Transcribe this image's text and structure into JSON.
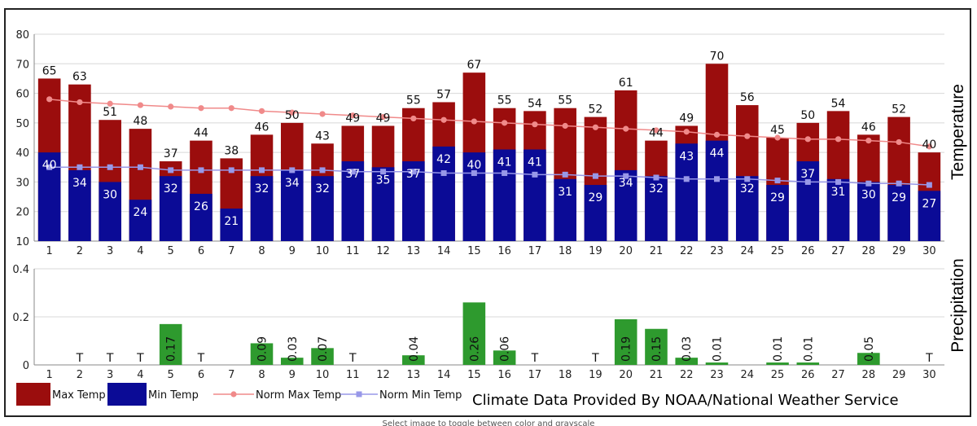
{
  "chart_data": {
    "type": "bar",
    "credit": "Climate Data Provided By NOAA/National Weather Service",
    "caption": "Select image to toggle between color and grayscale",
    "temperature_panel": {
      "ylabel": "Temperature",
      "ylim": [
        10,
        80
      ],
      "yticks": [
        "80",
        "70",
        "60",
        "50",
        "40",
        "30",
        "20",
        "10"
      ],
      "categories": [
        "1",
        "2",
        "3",
        "4",
        "5",
        "6",
        "7",
        "8",
        "9",
        "10",
        "11",
        "12",
        "13",
        "14",
        "15",
        "16",
        "17",
        "18",
        "19",
        "20",
        "21",
        "22",
        "23",
        "24",
        "25",
        "26",
        "27",
        "28",
        "29",
        "30"
      ],
      "series": [
        {
          "name": "Max Temp",
          "color": "#9b0d0d",
          "values": [
            65,
            63,
            51,
            48,
            37,
            44,
            38,
            46,
            50,
            43,
            49,
            49,
            55,
            57,
            67,
            55,
            54,
            55,
            52,
            61,
            44,
            49,
            70,
            56,
            45,
            50,
            54,
            46,
            52,
            40
          ]
        },
        {
          "name": "Min Temp",
          "color": "#0b0b96",
          "values": [
            40,
            34,
            30,
            24,
            32,
            26,
            21,
            32,
            34,
            32,
            37,
            35,
            37,
            42,
            40,
            41,
            41,
            31,
            29,
            34,
            32,
            43,
            44,
            32,
            29,
            37,
            31,
            30,
            29,
            27
          ]
        },
        {
          "name": "Norm Max Temp",
          "color": "#f08a8a",
          "values": [
            58,
            57,
            56.5,
            56,
            55.5,
            55,
            55,
            54,
            53.5,
            53,
            52.5,
            52,
            51.5,
            51,
            50.5,
            50,
            49.5,
            49,
            48.5,
            48,
            47.5,
            47,
            46,
            45.5,
            45,
            44.5,
            44.5,
            44,
            43.5,
            42
          ]
        },
        {
          "name": "Norm Min Temp",
          "color": "#9898e8",
          "values": [
            35,
            35,
            35,
            35,
            34,
            34,
            34,
            34,
            34,
            34,
            33.5,
            33.5,
            33.5,
            33,
            33,
            33,
            32.5,
            32.5,
            32,
            32,
            31.5,
            31,
            31,
            31,
            30.5,
            30,
            30,
            29.5,
            29.5,
            29
          ]
        }
      ]
    },
    "precipitation_panel": {
      "ylabel": "Precipitation",
      "ylim": [
        0,
        0.4
      ],
      "yticks": [
        "0.4",
        "0.2",
        "0"
      ],
      "color": "#2e9a2e",
      "values": [
        0,
        0,
        0,
        0,
        0.17,
        0,
        0,
        0.09,
        0.03,
        0.07,
        0,
        0,
        0.04,
        0,
        0.26,
        0.06,
        0,
        0,
        0,
        0.19,
        0.15,
        0.03,
        0.01,
        0,
        0.01,
        0.01,
        0,
        0.05,
        0,
        0
      ],
      "labels": [
        "",
        "T",
        "T",
        "T",
        "0.17",
        "T",
        "",
        "0.09",
        "0.03",
        "0.07",
        "T",
        "",
        "0.04",
        "",
        "0.26",
        "0.06",
        "T",
        "",
        "T",
        "0.19",
        "0.15",
        "0.03",
        "0.01",
        "",
        "0.01",
        "0.01",
        "",
        "0.05",
        "",
        "T"
      ]
    }
  }
}
